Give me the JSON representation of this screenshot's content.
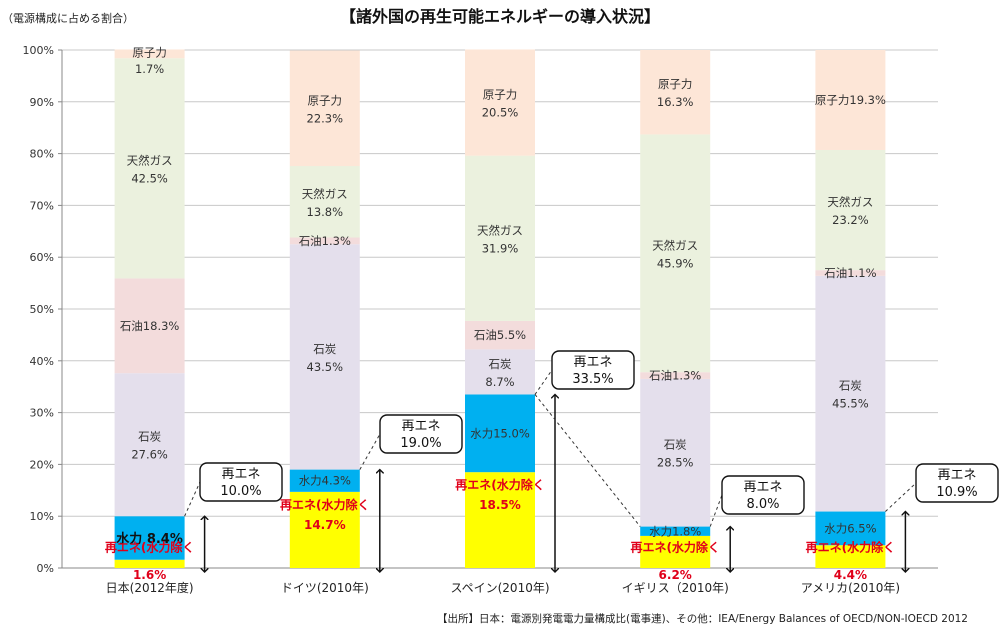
{
  "subtitle_note": "（電源構成に占める割合）",
  "source": "【出所】日本：電源別発電電力量構成比(電事連)、その他：IEA/Energy Balances of OECD/NON-IOECD 2012",
  "colors": {
    "nuclear": "#fde6d7",
    "gas": "#ebf1de",
    "oil": "#f3dcdc",
    "coal": "#e4dfec",
    "hydro": "#00b0f0",
    "renewable_ex_hydro": "#ffff00",
    "red_label": "#e0001a"
  },
  "chart_data": {
    "type": "bar",
    "stacked": true,
    "title": "【諸外国の再生可能エネルギーの導入状況】",
    "xlabel": "",
    "ylabel": "",
    "ylim": [
      0,
      100
    ],
    "yticks": [
      "0%",
      "10%",
      "20%",
      "30%",
      "40%",
      "50%",
      "60%",
      "70%",
      "80%",
      "90%",
      "100%"
    ],
    "grid": true,
    "categories": [
      "日本(2012年度)",
      "ドイツ(2010年)",
      "スペイン(2010年)",
      "イギリス（2010年)",
      "アメリカ(2010年)"
    ],
    "series": [
      {
        "name": "再エネ(水力除く",
        "values": [
          1.6,
          14.7,
          18.5,
          6.2,
          4.4
        ]
      },
      {
        "name": "水力",
        "values": [
          8.4,
          4.3,
          15.0,
          1.8,
          6.5
        ]
      },
      {
        "name": "石炭",
        "values": [
          27.6,
          43.5,
          8.7,
          28.5,
          45.5
        ]
      },
      {
        "name": "石油",
        "values": [
          18.3,
          1.3,
          5.5,
          1.3,
          1.1
        ]
      },
      {
        "name": "天然ガス",
        "values": [
          42.5,
          13.8,
          31.9,
          45.9,
          23.2
        ]
      },
      {
        "name": "原子力",
        "values": [
          1.7,
          22.3,
          20.5,
          16.3,
          19.3
        ]
      }
    ],
    "segment_labels": [
      [
        "1.6%",
        "8.4%",
        "27.6%",
        "18.3%",
        "42.5%",
        "1.7%"
      ],
      [
        "14.7%",
        "4.3%",
        "43.5%",
        "1.3%",
        "13.8%",
        "22.3%"
      ],
      [
        "18.5%",
        "15.0%",
        "8.7%",
        "5.5%",
        "31.9%",
        "20.5%"
      ],
      [
        "6.2%",
        "1.8%",
        "28.5%",
        "1.3%",
        "45.9%",
        "16.3%"
      ],
      [
        "4.4%",
        "6.5%",
        "45.5%",
        "1.1%",
        "23.2%",
        "19.3%"
      ]
    ],
    "renewable_total": {
      "label": "再エネ",
      "values": [
        "10.0%",
        "19.0%",
        "33.5%",
        "8.0%",
        "10.9%"
      ]
    }
  }
}
